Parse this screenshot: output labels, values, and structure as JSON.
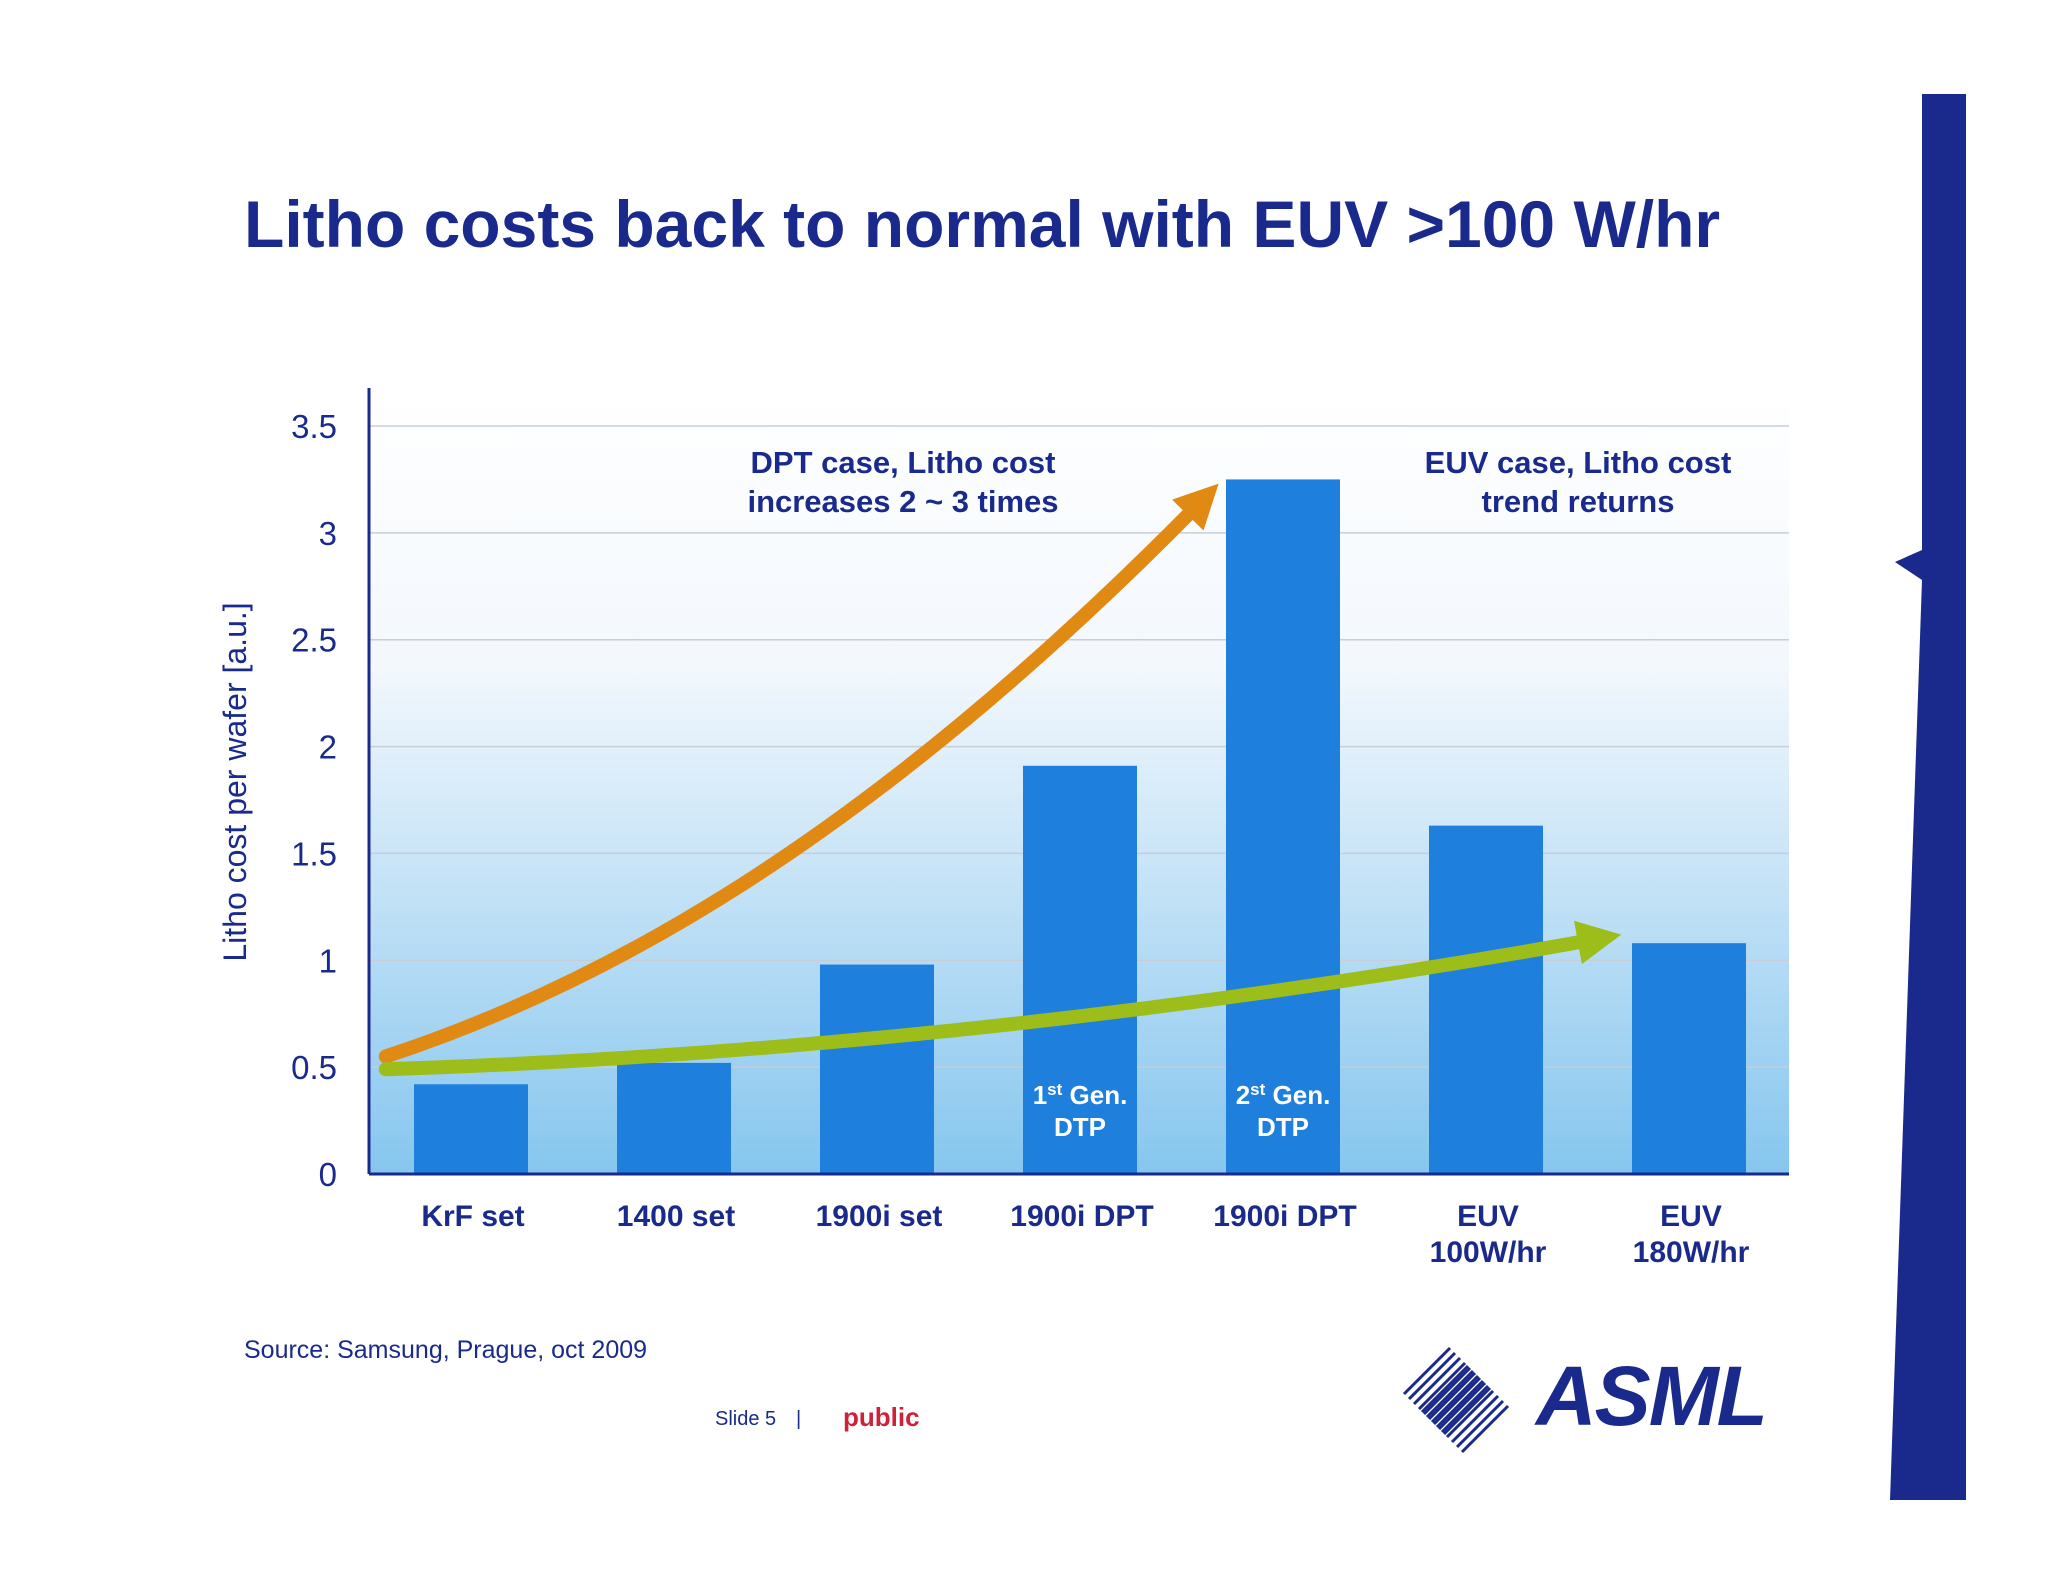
{
  "slide": {
    "title": "Litho costs back to normal with EUV >100 W/hr",
    "source": "Source: Samsung, Prague, oct 2009",
    "slide_number": "Slide 5",
    "separator": "|",
    "classification": "public",
    "classification_color": "#d0203a",
    "logo_text": "ASML"
  },
  "colors": {
    "brand": "#1a2a8c",
    "bar": "#1f7fdc",
    "dpt_arrow": "#e08a14",
    "euv_arrow": "#9cbd1a"
  },
  "chart_data": {
    "type": "bar",
    "title": "Litho costs back to normal with EUV >100 W/hr",
    "ylabel": "Litho cost per wafer [a.u.]",
    "xlabel": "",
    "ylim": [
      0,
      3.5
    ],
    "yticks": [
      "0",
      "0.5",
      "1",
      "1.5",
      "2",
      "2.5",
      "3",
      "3.5"
    ],
    "grid": true,
    "categories": [
      [
        "KrF set"
      ],
      [
        "1400 set"
      ],
      [
        "1900i set"
      ],
      [
        "1900i DPT"
      ],
      [
        "1900i DPT"
      ],
      [
        "EUV",
        "100W/hr"
      ],
      [
        "EUV",
        "180W/hr"
      ]
    ],
    "values": [
      0.42,
      0.52,
      0.98,
      1.91,
      3.25,
      1.63,
      1.08
    ],
    "bar_labels": [
      null,
      null,
      null,
      {
        "sup_prefix": "1",
        "sup": "st",
        "rest": " Gen.",
        "line2": "DTP"
      },
      {
        "sup_prefix": "2",
        "sup": "st",
        "rest": " Gen.",
        "line2": "DTP"
      },
      null,
      null
    ],
    "annotations": [
      {
        "id": "dpt",
        "lines": [
          "DPT case, Litho cost",
          "increases 2 ~ 3 times"
        ],
        "arrow": "orange",
        "path_values": [
          [
            -0.42,
            0.55
          ],
          [
            0.7,
            0.9
          ],
          [
            2.0,
            1.6
          ],
          [
            3.6,
            3.15
          ]
        ]
      },
      {
        "id": "euv",
        "lines": [
          "EUV case, Litho cost",
          "trend returns"
        ],
        "arrow": "green",
        "path_values": [
          [
            -0.42,
            0.49
          ],
          [
            1.5,
            0.55
          ],
          [
            3.5,
            0.75
          ],
          [
            5.55,
            1.1
          ]
        ]
      }
    ]
  }
}
